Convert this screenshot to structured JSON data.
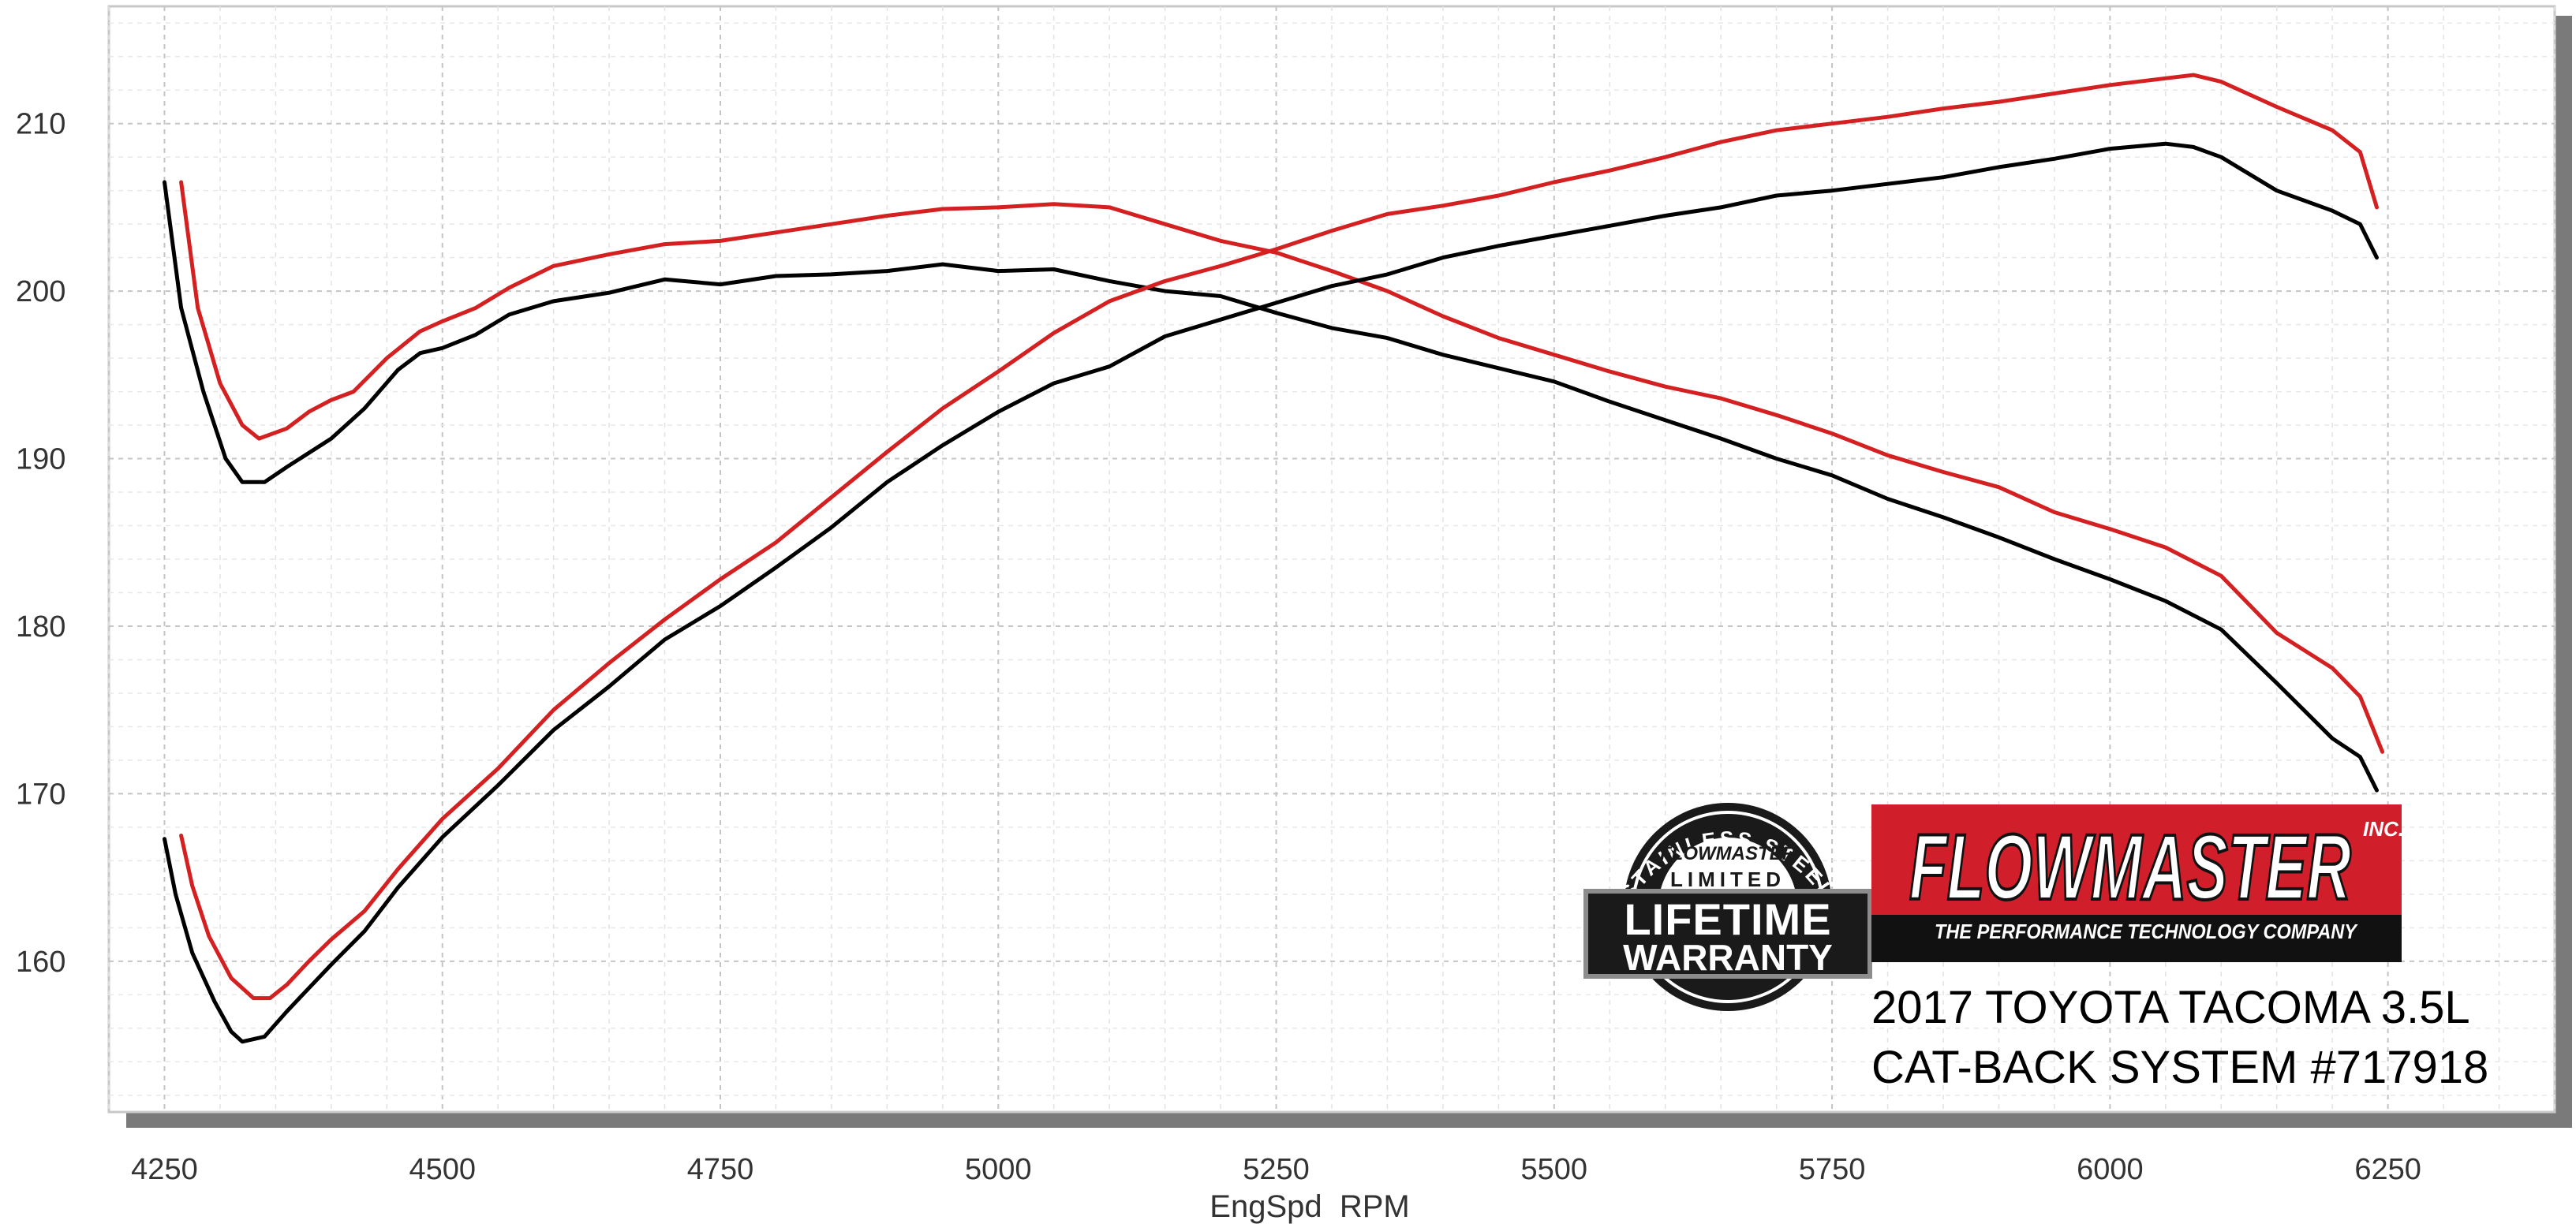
{
  "chart_data": {
    "type": "line",
    "title": "",
    "xlabel": "EngSpd  RPM",
    "ylabel": "",
    "xlim": [
      4200,
      6400
    ],
    "ylim": [
      151,
      217
    ],
    "x_ticks": [
      4250,
      4500,
      4750,
      5000,
      5250,
      5500,
      5750,
      6000,
      6250
    ],
    "y_ticks": [
      160,
      170,
      180,
      190,
      200,
      210
    ],
    "grid": true,
    "legend": "none",
    "series": [
      {
        "color": "#d42020",
        "points": [
          [
            4265,
            206.5
          ],
          [
            4280,
            199
          ],
          [
            4300,
            194.5
          ],
          [
            4320,
            192
          ],
          [
            4335,
            191.2
          ],
          [
            4360,
            191.8
          ],
          [
            4380,
            192.8
          ],
          [
            4400,
            193.5
          ],
          [
            4420,
            194
          ],
          [
            4450,
            196
          ],
          [
            4480,
            197.6
          ],
          [
            4500,
            198.2
          ],
          [
            4530,
            199
          ],
          [
            4560,
            200.2
          ],
          [
            4600,
            201.5
          ],
          [
            4650,
            202.2
          ],
          [
            4700,
            202.8
          ],
          [
            4750,
            203
          ],
          [
            4800,
            203.5
          ],
          [
            4850,
            204
          ],
          [
            4900,
            204.5
          ],
          [
            4950,
            204.9
          ],
          [
            5000,
            205
          ],
          [
            5050,
            205.2
          ],
          [
            5100,
            205
          ],
          [
            5150,
            204
          ],
          [
            5200,
            203
          ],
          [
            5250,
            202.3
          ],
          [
            5300,
            201.2
          ],
          [
            5350,
            200
          ],
          [
            5400,
            198.5
          ],
          [
            5450,
            197.2
          ],
          [
            5500,
            196.2
          ],
          [
            5550,
            195.2
          ],
          [
            5600,
            194.3
          ],
          [
            5650,
            193.6
          ],
          [
            5700,
            192.6
          ],
          [
            5750,
            191.5
          ],
          [
            5800,
            190.2
          ],
          [
            5850,
            189.2
          ],
          [
            5900,
            188.3
          ],
          [
            5950,
            186.8
          ],
          [
            6000,
            185.8
          ],
          [
            6050,
            184.7
          ],
          [
            6100,
            183
          ],
          [
            6150,
            179.6
          ],
          [
            6200,
            177.5
          ],
          [
            6225,
            175.8
          ],
          [
            6245,
            172.5
          ]
        ]
      },
      {
        "color": "#000000",
        "points": [
          [
            4250,
            206.5
          ],
          [
            4265,
            199
          ],
          [
            4285,
            194
          ],
          [
            4305,
            190
          ],
          [
            4320,
            188.6
          ],
          [
            4340,
            188.6
          ],
          [
            4360,
            189.5
          ],
          [
            4400,
            191.2
          ],
          [
            4430,
            193
          ],
          [
            4460,
            195.3
          ],
          [
            4480,
            196.3
          ],
          [
            4500,
            196.6
          ],
          [
            4530,
            197.4
          ],
          [
            4560,
            198.6
          ],
          [
            4600,
            199.4
          ],
          [
            4650,
            199.9
          ],
          [
            4700,
            200.7
          ],
          [
            4750,
            200.4
          ],
          [
            4800,
            200.9
          ],
          [
            4850,
            201
          ],
          [
            4900,
            201.2
          ],
          [
            4950,
            201.6
          ],
          [
            5000,
            201.2
          ],
          [
            5050,
            201.3
          ],
          [
            5100,
            200.6
          ],
          [
            5150,
            200
          ],
          [
            5200,
            199.7
          ],
          [
            5250,
            198.7
          ],
          [
            5300,
            197.8
          ],
          [
            5350,
            197.2
          ],
          [
            5400,
            196.2
          ],
          [
            5450,
            195.4
          ],
          [
            5500,
            194.6
          ],
          [
            5550,
            193.4
          ],
          [
            5600,
            192.3
          ],
          [
            5650,
            191.2
          ],
          [
            5700,
            190
          ],
          [
            5750,
            189
          ],
          [
            5800,
            187.6
          ],
          [
            5850,
            186.5
          ],
          [
            5900,
            185.3
          ],
          [
            5950,
            184
          ],
          [
            6000,
            182.8
          ],
          [
            6050,
            181.5
          ],
          [
            6100,
            179.8
          ],
          [
            6150,
            176.6
          ],
          [
            6200,
            173.3
          ],
          [
            6225,
            172.2
          ],
          [
            6240,
            170.2
          ]
        ]
      },
      {
        "color": "#d42020",
        "points": [
          [
            4265,
            167.5
          ],
          [
            4275,
            164.5
          ],
          [
            4290,
            161.5
          ],
          [
            4310,
            159
          ],
          [
            4330,
            157.8
          ],
          [
            4345,
            157.8
          ],
          [
            4360,
            158.6
          ],
          [
            4380,
            160
          ],
          [
            4400,
            161.3
          ],
          [
            4430,
            163
          ],
          [
            4460,
            165.5
          ],
          [
            4500,
            168.5
          ],
          [
            4550,
            171.5
          ],
          [
            4600,
            175
          ],
          [
            4650,
            177.8
          ],
          [
            4700,
            180.4
          ],
          [
            4750,
            182.8
          ],
          [
            4800,
            185
          ],
          [
            4850,
            187.7
          ],
          [
            4900,
            190.4
          ],
          [
            4950,
            193
          ],
          [
            5000,
            195.2
          ],
          [
            5050,
            197.5
          ],
          [
            5100,
            199.4
          ],
          [
            5150,
            200.6
          ],
          [
            5200,
            201.5
          ],
          [
            5250,
            202.5
          ],
          [
            5300,
            203.6
          ],
          [
            5350,
            204.6
          ],
          [
            5400,
            205.1
          ],
          [
            5450,
            205.7
          ],
          [
            5500,
            206.5
          ],
          [
            5550,
            207.2
          ],
          [
            5600,
            208
          ],
          [
            5650,
            208.9
          ],
          [
            5700,
            209.6
          ],
          [
            5750,
            210
          ],
          [
            5800,
            210.4
          ],
          [
            5850,
            210.9
          ],
          [
            5900,
            211.3
          ],
          [
            5950,
            211.8
          ],
          [
            6000,
            212.3
          ],
          [
            6050,
            212.7
          ],
          [
            6075,
            212.9
          ],
          [
            6100,
            212.5
          ],
          [
            6150,
            211
          ],
          [
            6200,
            209.6
          ],
          [
            6225,
            208.3
          ],
          [
            6240,
            205
          ]
        ]
      },
      {
        "color": "#000000",
        "points": [
          [
            4250,
            167.3
          ],
          [
            4260,
            164
          ],
          [
            4275,
            160.5
          ],
          [
            4295,
            157.6
          ],
          [
            4310,
            155.8
          ],
          [
            4320,
            155.2
          ],
          [
            4340,
            155.5
          ],
          [
            4360,
            157
          ],
          [
            4380,
            158.4
          ],
          [
            4400,
            159.8
          ],
          [
            4430,
            161.8
          ],
          [
            4460,
            164.4
          ],
          [
            4500,
            167.4
          ],
          [
            4550,
            170.5
          ],
          [
            4600,
            173.8
          ],
          [
            4650,
            176.4
          ],
          [
            4700,
            179.2
          ],
          [
            4750,
            181.2
          ],
          [
            4800,
            183.5
          ],
          [
            4850,
            185.9
          ],
          [
            4900,
            188.6
          ],
          [
            4950,
            190.8
          ],
          [
            5000,
            192.8
          ],
          [
            5050,
            194.5
          ],
          [
            5100,
            195.5
          ],
          [
            5150,
            197.3
          ],
          [
            5200,
            198.3
          ],
          [
            5250,
            199.3
          ],
          [
            5300,
            200.3
          ],
          [
            5350,
            201
          ],
          [
            5400,
            202
          ],
          [
            5450,
            202.7
          ],
          [
            5500,
            203.3
          ],
          [
            5550,
            203.9
          ],
          [
            5600,
            204.5
          ],
          [
            5650,
            205
          ],
          [
            5700,
            205.7
          ],
          [
            5750,
            206
          ],
          [
            5800,
            206.4
          ],
          [
            5850,
            206.8
          ],
          [
            5900,
            207.4
          ],
          [
            5950,
            207.9
          ],
          [
            6000,
            208.5
          ],
          [
            6050,
            208.8
          ],
          [
            6075,
            208.6
          ],
          [
            6100,
            208
          ],
          [
            6150,
            206
          ],
          [
            6200,
            204.8
          ],
          [
            6225,
            204
          ],
          [
            6240,
            202
          ]
        ]
      }
    ]
  },
  "branding": {
    "badge_top": "STAINLESS STEEL",
    "badge_brand": "FLOWMASTER",
    "badge_limited": "LIMITED",
    "badge_line1": "LIFETIME",
    "badge_line2": "WARRANTY",
    "logo_text": "FLOWMASTER",
    "logo_inc": "INC.",
    "logo_tagline": "THE PERFORMANCE TECHNOLOGY COMPANY",
    "logo_color": "#d01f2b",
    "caption_line1": "2017 TOYOTA TACOMA 3.5L",
    "caption_line2": "CAT-BACK SYSTEM #717918"
  }
}
